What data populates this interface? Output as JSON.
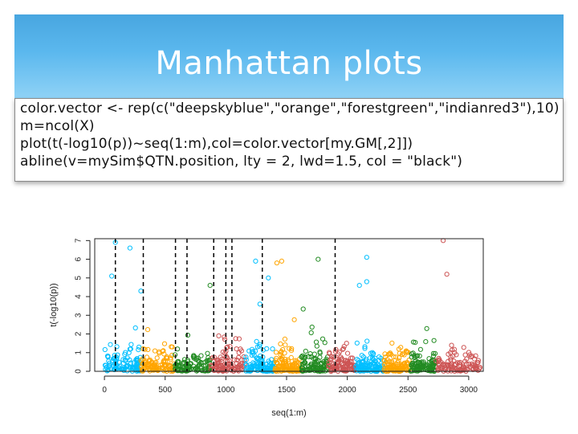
{
  "slide": {
    "title": "Manhattan plots"
  },
  "code": [
    "color.vector <- rep(c(\"deepskyblue\",\"orange\",\"forestgreen\",\"indianred3\"),10)",
    "m=ncol(X)",
    "plot(t(-log10(p))~seq(1:m),col=color.vector[my.GM[,2]])",
    "abline(v=mySim$QTN.position, lty = 2, lwd=1.5, col = \"black\")"
  ],
  "chart_data": {
    "type": "scatter",
    "xlabel": "seq(1:m)",
    "ylabel": "t(-log10(p))",
    "xlim": [
      -80,
      3120
    ],
    "ylim": [
      0,
      7.1
    ],
    "xticks": [
      0,
      500,
      1000,
      1500,
      2000,
      2500,
      3000
    ],
    "yticks": [
      0,
      1,
      2,
      3,
      4,
      5,
      6,
      7
    ],
    "grid": false,
    "legend": "none",
    "chromosome_colors": [
      "#00bfff",
      "#ffa500",
      "#228b22",
      "#cd5555"
    ],
    "chromosomes": [
      {
        "color_index": 0,
        "start": 1,
        "end": 300
      },
      {
        "color_index": 1,
        "start": 301,
        "end": 580
      },
      {
        "color_index": 2,
        "start": 581,
        "end": 875
      },
      {
        "color_index": 3,
        "start": 876,
        "end": 1160
      },
      {
        "color_index": 0,
        "start": 1161,
        "end": 1400
      },
      {
        "color_index": 1,
        "start": 1401,
        "end": 1620
      },
      {
        "color_index": 2,
        "start": 1621,
        "end": 1845
      },
      {
        "color_index": 3,
        "start": 1846,
        "end": 2070
      },
      {
        "color_index": 0,
        "start": 2071,
        "end": 2300
      },
      {
        "color_index": 1,
        "start": 2301,
        "end": 2520
      },
      {
        "color_index": 2,
        "start": 2521,
        "end": 2730
      },
      {
        "color_index": 3,
        "start": 2731,
        "end": 3093
      }
    ],
    "qtn_positions": [
      90,
      320,
      585,
      680,
      900,
      1000,
      1050,
      1300,
      1900
    ],
    "highlight_points": [
      {
        "x": 90,
        "y": 6.9
      },
      {
        "x": 210,
        "y": 6.6
      },
      {
        "x": 1245,
        "y": 5.9
      },
      {
        "x": 1420,
        "y": 5.8
      },
      {
        "x": 1460,
        "y": 5.9
      },
      {
        "x": 1760,
        "y": 6.0
      },
      {
        "x": 2160,
        "y": 6.1
      },
      {
        "x": 2790,
        "y": 7.0
      },
      {
        "x": 2100,
        "y": 4.6
      },
      {
        "x": 2820,
        "y": 5.2
      },
      {
        "x": 2160,
        "y": 4.8
      },
      {
        "x": 1350,
        "y": 5.0
      },
      {
        "x": 60,
        "y": 5.1
      },
      {
        "x": 870,
        "y": 4.6
      },
      {
        "x": 300,
        "y": 4.3
      }
    ],
    "background_points_per_chromosome": 110
  }
}
